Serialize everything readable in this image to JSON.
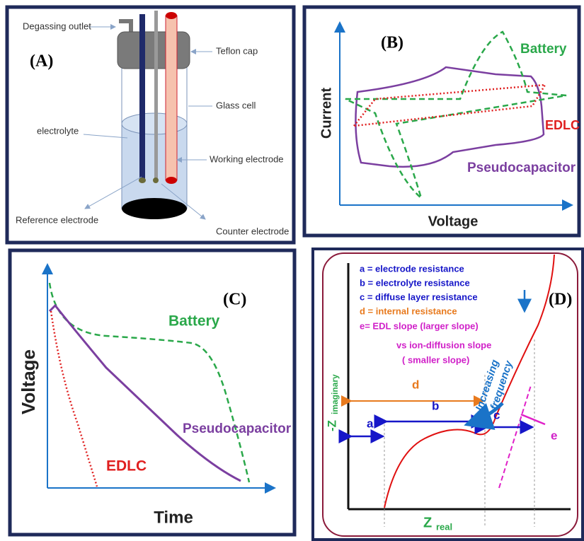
{
  "panel_a": {
    "label": "(A)",
    "degassing_outlet": "Degassing outlet",
    "teflon_cap": "Teflon cap",
    "glass_cell": "Glass cell",
    "electrolyte": "electrolyte",
    "working_electrode": "Working electrode",
    "reference_electrode": "Reference electrode",
    "counter_electrode": "Counter electrode"
  },
  "panel_b": {
    "label": "(B)",
    "battery": "Battery",
    "edlc": "EDLC",
    "pseudocapacitor": "Pseudocapacitor",
    "y_axis": "Current",
    "x_axis": "Voltage"
  },
  "panel_c": {
    "label": "(C)",
    "battery": "Battery",
    "pseudocapacitor": "Pseudocapacitor",
    "edlc": "EDLC",
    "y_axis": "Voltage",
    "x_axis": "Time"
  },
  "panel_d": {
    "label": "(D)",
    "legend": [
      "a = electrode resistance",
      "b = electrolyte resistance",
      "c = diffuse layer resistance",
      "d = internal resistance",
      "e=  EDL slope (larger slope)",
      "vs ion-diffusion slope",
      "( smaller slope)"
    ],
    "frequency": [
      "Increasing",
      "frequency"
    ],
    "markers": {
      "a": "a",
      "b": "b",
      "c": "c",
      "d": "d",
      "e": "e"
    },
    "y_axis": {
      "main": "-Z",
      "sub": "imaginary"
    },
    "x_axis": {
      "main": "Z",
      "sub": "real"
    }
  }
}
